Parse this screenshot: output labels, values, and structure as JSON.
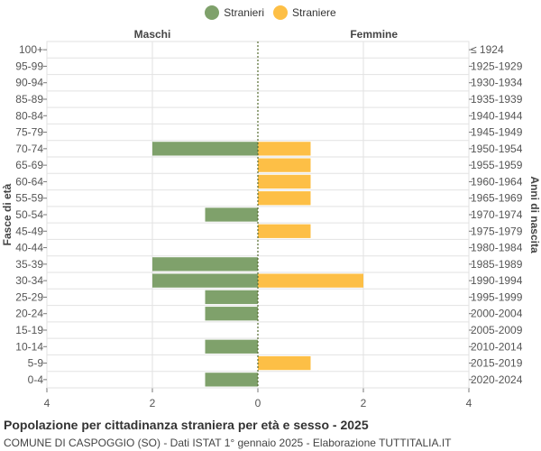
{
  "colors": {
    "male": "#7fa16b",
    "female": "#fdbf46",
    "grid": "#e2e2e2",
    "axis": "#777777",
    "centerline": "#556b2f"
  },
  "legend": {
    "male": "Stranieri",
    "female": "Straniere"
  },
  "title": "Popolazione per cittadinanza straniera per età e sesso - 2025",
  "subtitle": "COMUNE DI CASPOGGIO (SO) - Dati ISTAT 1° gennaio 2025 - Elaborazione TUTTITALIA.IT",
  "chart_data": {
    "type": "bar",
    "orientation": "horizontal-population-pyramid",
    "side_labels": {
      "left": "Maschi",
      "right": "Femmine"
    },
    "ylabel_left": "Fasce di età",
    "ylabel_right": "Anni di nascita",
    "x_ticks": [
      "4",
      "2",
      "0",
      "2",
      "4"
    ],
    "xlim": [
      -4,
      4
    ],
    "grid": true,
    "legend_position": "top-center",
    "categories": [
      "100+",
      "95-99",
      "90-94",
      "85-89",
      "80-84",
      "75-79",
      "70-74",
      "65-69",
      "60-64",
      "55-59",
      "50-54",
      "45-49",
      "40-44",
      "35-39",
      "30-34",
      "25-29",
      "20-24",
      "15-19",
      "10-14",
      "5-9",
      "0-4"
    ],
    "birth_years": [
      "≤ 1924",
      "1925-1929",
      "1930-1934",
      "1935-1939",
      "1940-1944",
      "1945-1949",
      "1950-1954",
      "1955-1959",
      "1960-1964",
      "1965-1969",
      "1970-1974",
      "1975-1979",
      "1980-1984",
      "1985-1989",
      "1990-1994",
      "1995-1999",
      "2000-2004",
      "2005-2009",
      "2010-2014",
      "2015-2019",
      "2020-2024"
    ],
    "series": [
      {
        "name": "Stranieri",
        "values": [
          0,
          0,
          0,
          0,
          0,
          0,
          2,
          0,
          0,
          0,
          1,
          0,
          0,
          2,
          2,
          1,
          1,
          0,
          1,
          0,
          1
        ]
      },
      {
        "name": "Straniere",
        "values": [
          0,
          0,
          0,
          0,
          0,
          0,
          1,
          1,
          1,
          1,
          0,
          1,
          0,
          0,
          2,
          0,
          0,
          0,
          0,
          1,
          0
        ]
      }
    ]
  }
}
